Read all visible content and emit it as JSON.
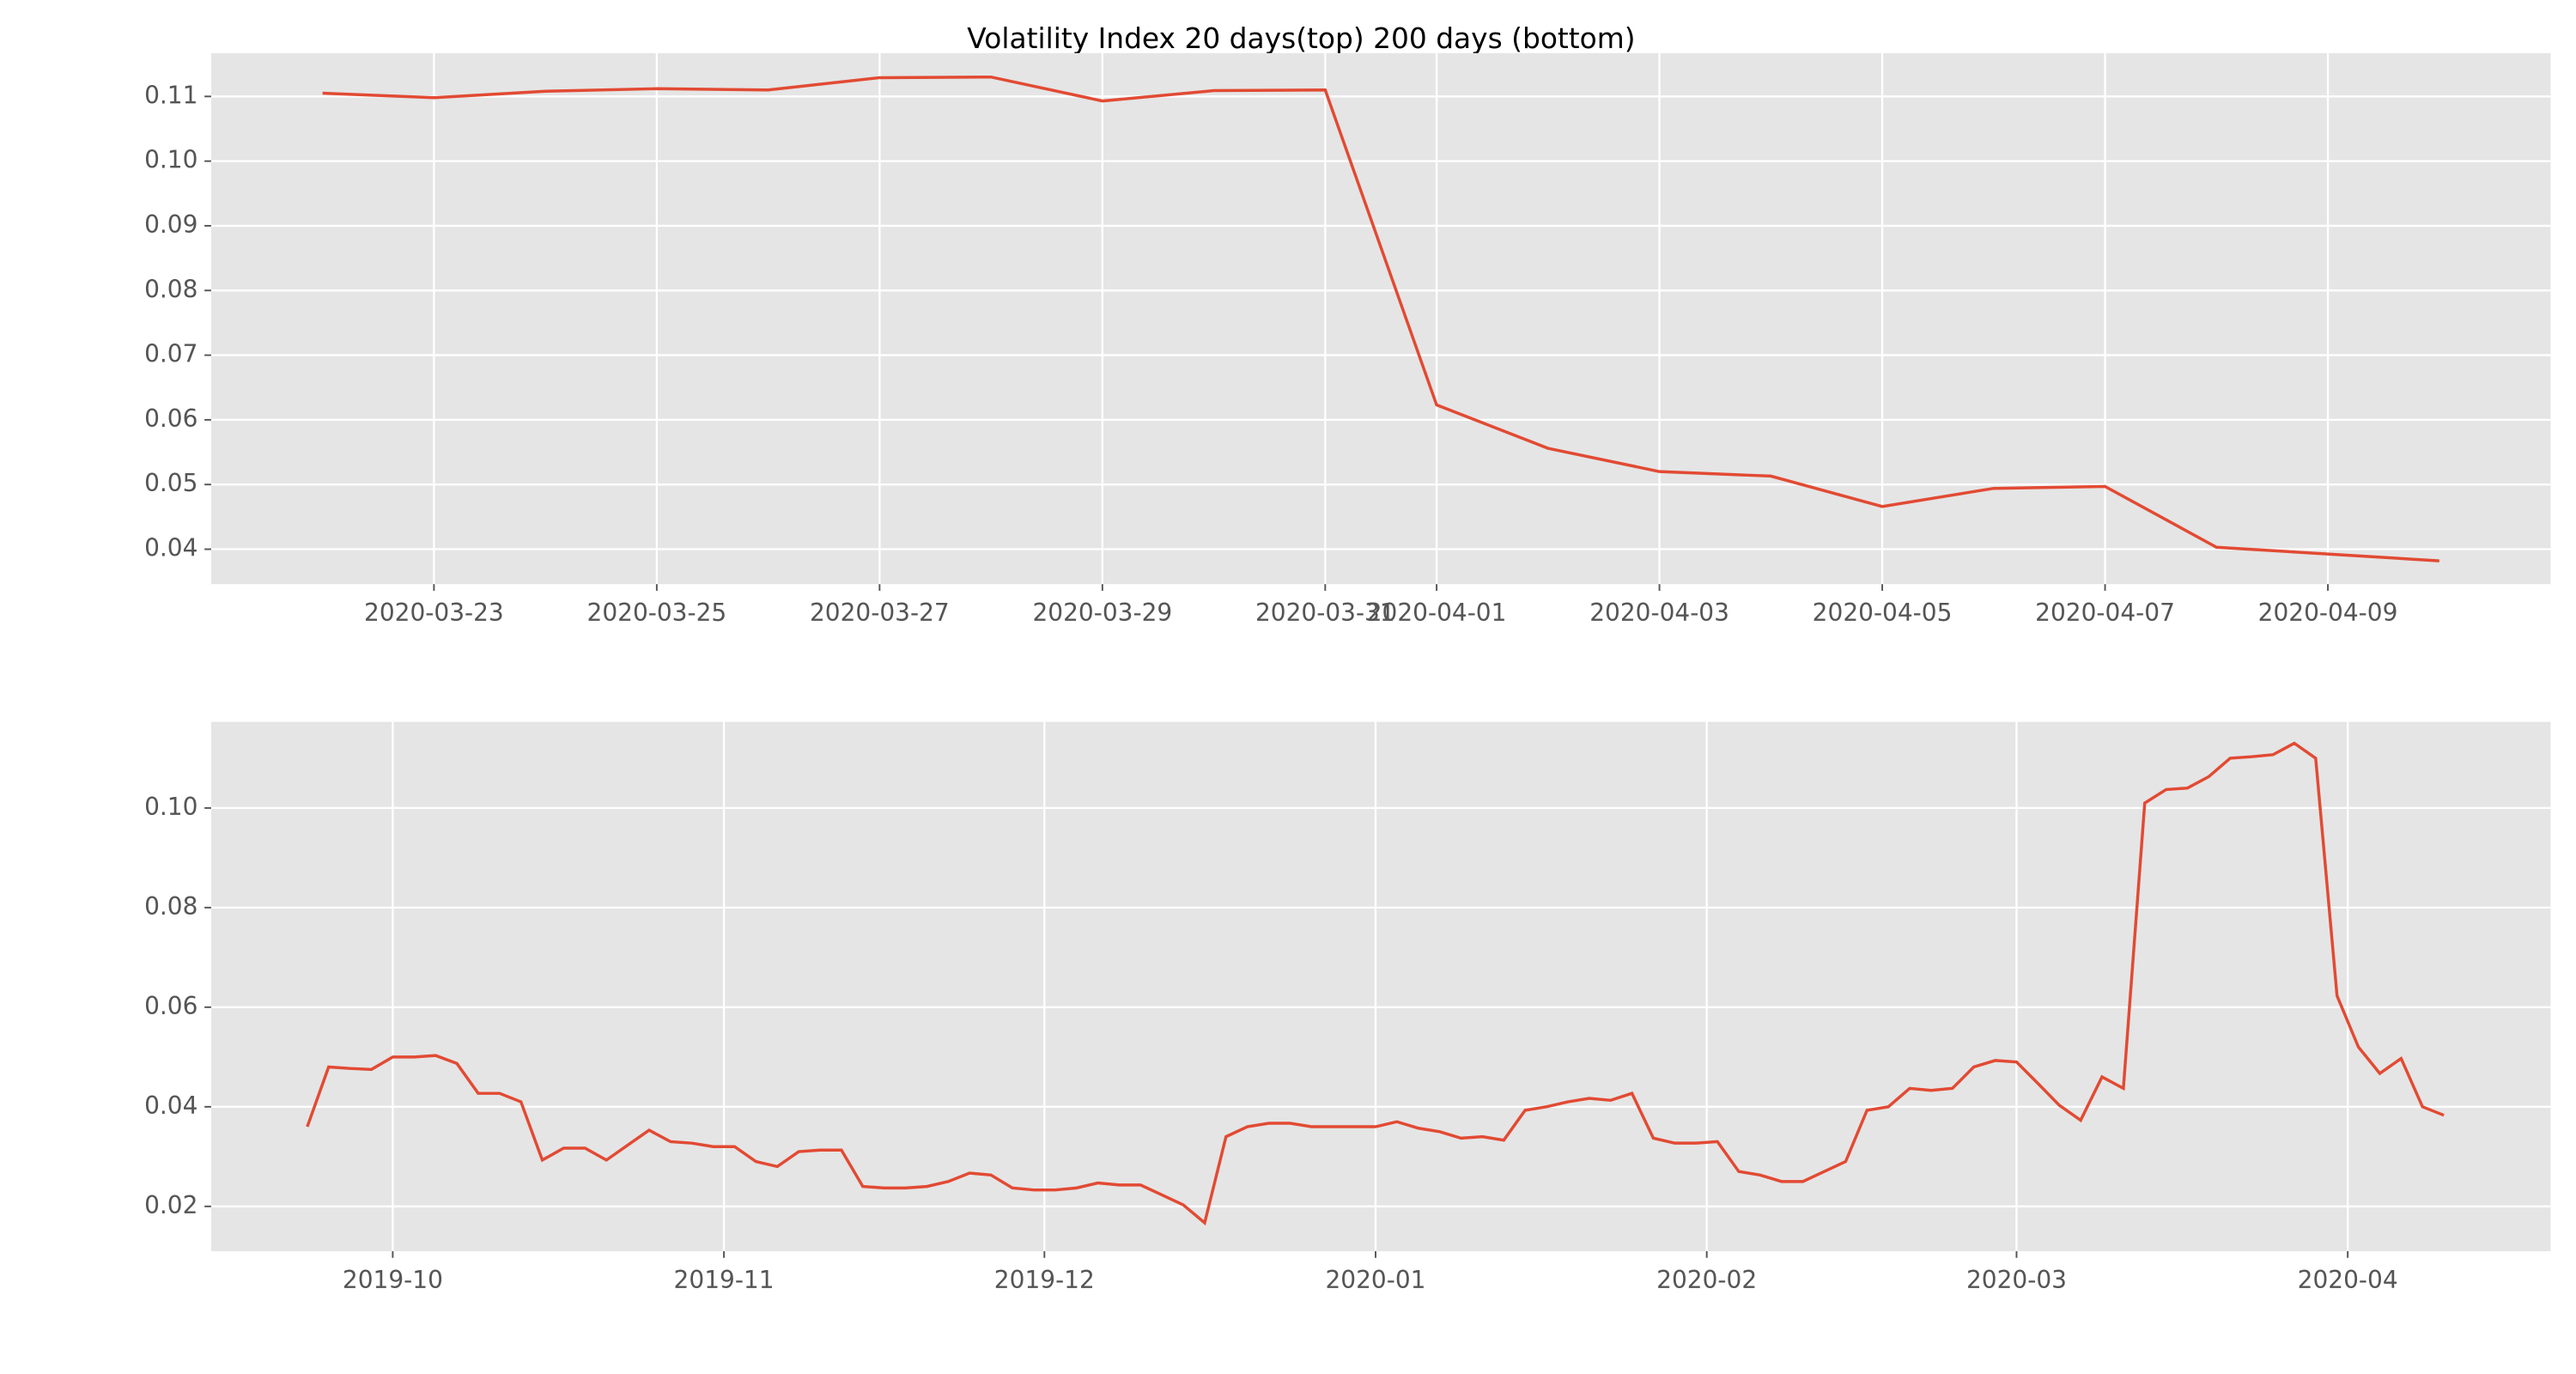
{
  "chart_data": [
    {
      "type": "line",
      "title": "Volatility Index 20 days(top) 200 days (bottom)",
      "x": [
        "2020-03-22",
        "2020-03-23",
        "2020-03-24",
        "2020-03-25",
        "2020-03-26",
        "2020-03-27",
        "2020-03-28",
        "2020-03-29",
        "2020-03-30",
        "2020-03-31",
        "2020-04-01",
        "2020-04-02",
        "2020-04-03",
        "2020-04-04",
        "2020-04-05",
        "2020-04-06",
        "2020-04-07",
        "2020-04-08",
        "2020-04-10"
      ],
      "series": [
        {
          "color": "#e24a33",
          "values": [
            0.1105,
            0.1098,
            0.1108,
            0.1112,
            0.111,
            0.1129,
            0.113,
            0.1093,
            0.1109,
            0.111,
            0.0623,
            0.0556,
            0.052,
            0.0513,
            0.0466,
            0.0494,
            0.0497,
            0.0403,
            0.0382
          ]
        }
      ],
      "xlim": [
        "2020-03-21",
        "2020-04-11"
      ],
      "xticks": [
        "2020-03-23",
        "2020-03-25",
        "2020-03-27",
        "2020-03-29",
        "2020-03-31",
        "2020-04-01",
        "2020-04-03",
        "2020-04-05",
        "2020-04-07",
        "2020-04-09"
      ],
      "ylim": [
        0.0346,
        0.1167
      ],
      "yticks": [
        0.04,
        0.05,
        0.06,
        0.07,
        0.08,
        0.09,
        {
          "value": 0.1,
          "label": "0.10"
        },
        0.11
      ],
      "grid": true
    },
    {
      "type": "line",
      "x": [
        "2019-09-23",
        "2019-09-25",
        "2019-09-27",
        "2019-09-29",
        "2019-10-01",
        "2019-10-03",
        "2019-10-05",
        "2019-10-07",
        "2019-10-09",
        "2019-10-11",
        "2019-10-13",
        "2019-10-15",
        "2019-10-17",
        "2019-10-19",
        "2019-10-21",
        "2019-10-23",
        "2019-10-25",
        "2019-10-27",
        "2019-10-29",
        "2019-10-31",
        "2019-11-02",
        "2019-11-04",
        "2019-11-06",
        "2019-11-08",
        "2019-11-10",
        "2019-11-12",
        "2019-11-14",
        "2019-11-16",
        "2019-11-18",
        "2019-11-20",
        "2019-11-22",
        "2019-11-24",
        "2019-11-26",
        "2019-11-28",
        "2019-11-30",
        "2019-12-02",
        "2019-12-04",
        "2019-12-06",
        "2019-12-08",
        "2019-12-10",
        "2019-12-12",
        "2019-12-14",
        "2019-12-16",
        "2019-12-18",
        "2019-12-20",
        "2019-12-22",
        "2019-12-24",
        "2019-12-26",
        "2019-12-28",
        "2019-12-30",
        "2020-01-01",
        "2020-01-03",
        "2020-01-05",
        "2020-01-07",
        "2020-01-09",
        "2020-01-11",
        "2020-01-13",
        "2020-01-15",
        "2020-01-17",
        "2020-01-19",
        "2020-01-21",
        "2020-01-23",
        "2020-01-25",
        "2020-01-27",
        "2020-01-29",
        "2020-01-31",
        "2020-02-02",
        "2020-02-04",
        "2020-02-06",
        "2020-02-08",
        "2020-02-10",
        "2020-02-12",
        "2020-02-14",
        "2020-02-16",
        "2020-02-18",
        "2020-02-20",
        "2020-02-22",
        "2020-02-24",
        "2020-02-26",
        "2020-02-28",
        "2020-03-01",
        "2020-03-03",
        "2020-03-05",
        "2020-03-07",
        "2020-03-09",
        "2020-03-11",
        "2020-03-13",
        "2020-03-15",
        "2020-03-17",
        "2020-03-19",
        "2020-03-21",
        "2020-03-23",
        "2020-03-25",
        "2020-03-27",
        "2020-03-29",
        "2020-03-31",
        "2020-04-02",
        "2020-04-04",
        "2020-04-06",
        "2020-04-08",
        "2020-04-10"
      ],
      "series": [
        {
          "color": "#e24a33",
          "values": [
            0.036,
            0.048,
            0.0477,
            0.0475,
            0.05,
            0.05,
            0.0503,
            0.0487,
            0.0427,
            0.0427,
            0.041,
            0.0293,
            0.0317,
            0.0317,
            0.0293,
            0.0323,
            0.0353,
            0.033,
            0.0327,
            0.032,
            0.032,
            0.029,
            0.028,
            0.031,
            0.0313,
            0.0313,
            0.024,
            0.0237,
            0.0237,
            0.024,
            0.025,
            0.0267,
            0.0263,
            0.0237,
            0.0233,
            0.0233,
            0.0237,
            0.0247,
            0.0243,
            0.0243,
            0.0223,
            0.0203,
            0.0167,
            0.034,
            0.036,
            0.0367,
            0.0367,
            0.036,
            0.036,
            0.036,
            0.036,
            0.037,
            0.0357,
            0.035,
            0.0337,
            0.034,
            0.0333,
            0.0393,
            0.04,
            0.041,
            0.0417,
            0.0413,
            0.0427,
            0.0337,
            0.0327,
            0.0327,
            0.033,
            0.027,
            0.0263,
            0.025,
            0.025,
            0.027,
            0.029,
            0.0393,
            0.04,
            0.0437,
            0.0433,
            0.0437,
            0.048,
            0.0493,
            0.049,
            0.0447,
            0.0403,
            0.0373,
            0.046,
            0.0437,
            0.101,
            0.1037,
            0.104,
            0.1063,
            0.11,
            0.1103,
            0.1107,
            0.113,
            0.11,
            0.0623,
            0.052,
            0.0467,
            0.0497,
            0.04,
            0.0383
          ]
        }
      ],
      "xlim": [
        "2019-09-14",
        "2020-04-20"
      ],
      "xticks": [
        "2019-10",
        "2019-11",
        "2019-12",
        "2020-01",
        "2020-02",
        "2020-03",
        "2020-04"
      ],
      "ylim": [
        0.011,
        0.1173
      ],
      "yticks": [
        0.02,
        0.04,
        0.06,
        0.08,
        {
          "value": 0.1,
          "label": "0.10"
        }
      ],
      "grid": true
    }
  ]
}
